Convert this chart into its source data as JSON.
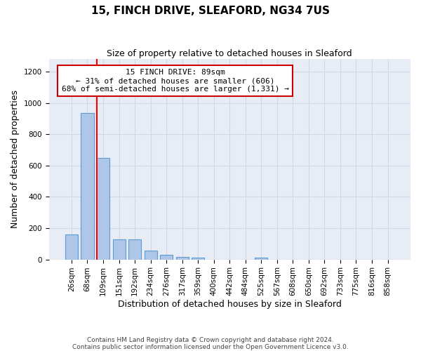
{
  "title_line1": "15, FINCH DRIVE, SLEAFORD, NG34 7US",
  "title_line2": "Size of property relative to detached houses in Sleaford",
  "xlabel": "Distribution of detached houses by size in Sleaford",
  "ylabel": "Number of detached properties",
  "footnote": "Contains HM Land Registry data © Crown copyright and database right 2024.\nContains public sector information licensed under the Open Government Licence v3.0.",
  "categories": [
    "26sqm",
    "68sqm",
    "109sqm",
    "151sqm",
    "192sqm",
    "234sqm",
    "276sqm",
    "317sqm",
    "359sqm",
    "400sqm",
    "442sqm",
    "484sqm",
    "525sqm",
    "567sqm",
    "608sqm",
    "650sqm",
    "692sqm",
    "733sqm",
    "775sqm",
    "816sqm",
    "858sqm"
  ],
  "values": [
    160,
    935,
    650,
    130,
    130,
    55,
    30,
    15,
    12,
    0,
    0,
    0,
    12,
    0,
    0,
    0,
    0,
    0,
    0,
    0,
    0
  ],
  "bar_color": "#aec6e8",
  "bar_edge_color": "#5a9fd4",
  "ylim": [
    0,
    1280
  ],
  "yticks": [
    0,
    200,
    400,
    600,
    800,
    1000,
    1200
  ],
  "property_line_x": 1.62,
  "annotation_text": "15 FINCH DRIVE: 89sqm\n← 31% of detached houses are smaller (606)\n68% of semi-detached houses are larger (1,331) →",
  "annotation_box_color": "#ffffff",
  "annotation_box_edge_color": "#cc0000",
  "grid_color": "#d0d8e8",
  "bg_color": "#e8ecf4",
  "title_fontsize": 11,
  "subtitle_fontsize": 9,
  "ylabel_fontsize": 9,
  "xlabel_fontsize": 9,
  "tick_fontsize": 7.5,
  "annotation_fontsize": 8,
  "footnote_fontsize": 6.5
}
